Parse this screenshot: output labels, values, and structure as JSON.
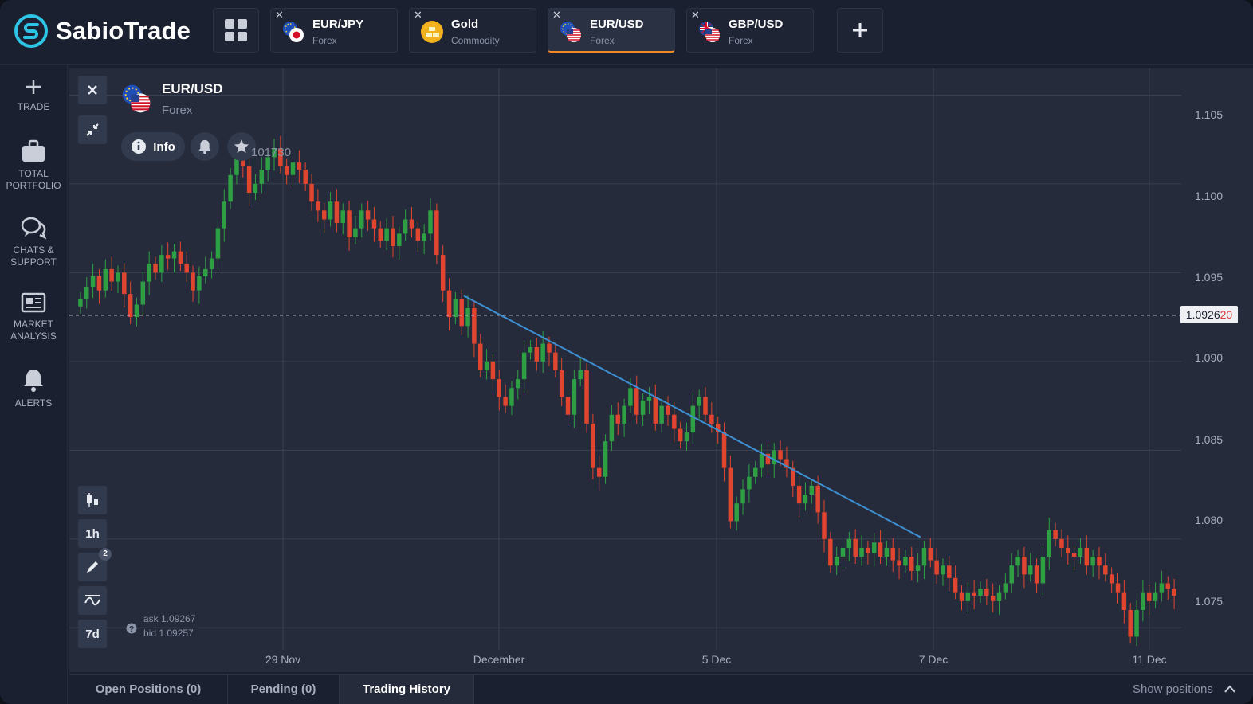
{
  "app": {
    "name": "SabioTrade"
  },
  "header": {
    "tabs": [
      {
        "symbol": "EUR/JPY",
        "category": "Forex",
        "active": false
      },
      {
        "symbol": "Gold",
        "category": "Commodity",
        "active": false
      },
      {
        "symbol": "EUR/USD",
        "category": "Forex",
        "active": true
      },
      {
        "symbol": "GBP/USD",
        "category": "Forex",
        "active": false
      }
    ],
    "grid_icon": "grid-icon",
    "add_icon": "plus-icon"
  },
  "sidebar": {
    "items": [
      {
        "label": "TRADE",
        "icon": "plus-icon"
      },
      {
        "label": "TOTAL PORTFOLIO",
        "icon": "briefcase-icon"
      },
      {
        "label": "CHATS & SUPPORT",
        "icon": "chat-icon"
      },
      {
        "label": "MARKET ANALYSIS",
        "icon": "newspaper-icon"
      },
      {
        "label": "ALERTS",
        "icon": "bell-icon"
      }
    ]
  },
  "instrument": {
    "name": "EUR/USD",
    "category": "Forex",
    "info_label": "Info",
    "price_readout": "101730",
    "current_price_main": "1.0926",
    "current_price_tail": "20",
    "ask_label": "ask 1.09267",
    "bid_label": "bid 1.09257"
  },
  "toolbar": {
    "timeframe": "1h",
    "period": "7d",
    "drawing_count": "2"
  },
  "chart_data": {
    "type": "candlestick",
    "y_ticks": [
      "1.105",
      "1.100",
      "1.095",
      "1.090",
      "1.085",
      "1.080",
      "1.075"
    ],
    "x_ticks": [
      "29 Nov",
      "December",
      "5 Dec",
      "7 Dec",
      "11 Dec"
    ],
    "ylim": [
      1.0725,
      1.1065
    ],
    "current_price": 1.0926,
    "trendline": [
      {
        "x": "Nov 30 late",
        "y": 1.0937
      },
      {
        "x": "Dec 6 late",
        "y": 1.0801
      }
    ],
    "colors": {
      "up": "#2ea043",
      "down": "#e0452f",
      "trendline": "#3d8fd1",
      "grid": "#3a4152"
    },
    "closes": [
      1.0935,
      1.0942,
      1.0948,
      1.094,
      1.0952,
      1.0945,
      1.095,
      1.0938,
      1.0925,
      1.0932,
      1.0945,
      1.0955,
      1.095,
      1.096,
      1.0958,
      1.0962,
      1.0955,
      1.095,
      1.094,
      1.0948,
      1.0952,
      1.0958,
      1.0975,
      1.099,
      1.1005,
      1.102,
      1.101,
      1.0995,
      1.1,
      1.1008,
      1.1015,
      1.102,
      1.101,
      1.1005,
      1.1012,
      1.1008,
      1.1,
      1.099,
      1.0985,
      1.098,
      1.099,
      1.0978,
      1.0985,
      1.097,
      1.0975,
      1.0985,
      1.098,
      1.0975,
      1.0968,
      1.0975,
      1.0965,
      1.0972,
      1.098,
      1.0975,
      1.0968,
      1.0972,
      1.0985,
      1.096,
      1.094,
      1.0925,
      1.0935,
      1.092,
      1.093,
      1.091,
      1.0895,
      1.09,
      1.089,
      1.088,
      1.0875,
      1.0885,
      1.089,
      1.0905,
      1.0908,
      1.09,
      1.091,
      1.0905,
      1.0895,
      1.088,
      1.087,
      1.089,
      1.0895,
      1.0865,
      1.084,
      1.0835,
      1.0855,
      1.087,
      1.0865,
      1.0875,
      1.0885,
      1.087,
      1.0878,
      1.088,
      1.0865,
      1.0875,
      1.087,
      1.0862,
      1.0855,
      1.086,
      1.0875,
      1.088,
      1.087,
      1.0865,
      1.086,
      1.084,
      1.081,
      1.082,
      1.0828,
      1.0835,
      1.084,
      1.0848,
      1.0842,
      1.085,
      1.0845,
      1.084,
      1.083,
      1.082,
      1.0825,
      1.083,
      1.0815,
      1.08,
      1.0785,
      1.079,
      1.0795,
      1.08,
      1.079,
      1.0795,
      1.0792,
      1.0798,
      1.079,
      1.0795,
      1.0788,
      1.0785,
      1.079,
      1.0782,
      1.0785,
      1.0795,
      1.0788,
      1.078,
      1.0785,
      1.0778,
      1.077,
      1.0765,
      1.077,
      1.0768,
      1.0772,
      1.0768,
      1.0765,
      1.077,
      1.0775,
      1.0785,
      1.079,
      1.078,
      1.0785,
      1.0775,
      1.079,
      1.0805,
      1.08,
      1.0795,
      1.0792,
      1.079,
      1.0795,
      1.0785,
      1.079,
      1.0785,
      1.078,
      1.0775,
      1.077,
      1.076,
      1.0745,
      1.076,
      1.077,
      1.0765,
      1.077,
      1.0775,
      1.0772,
      1.0768
    ]
  }
}
